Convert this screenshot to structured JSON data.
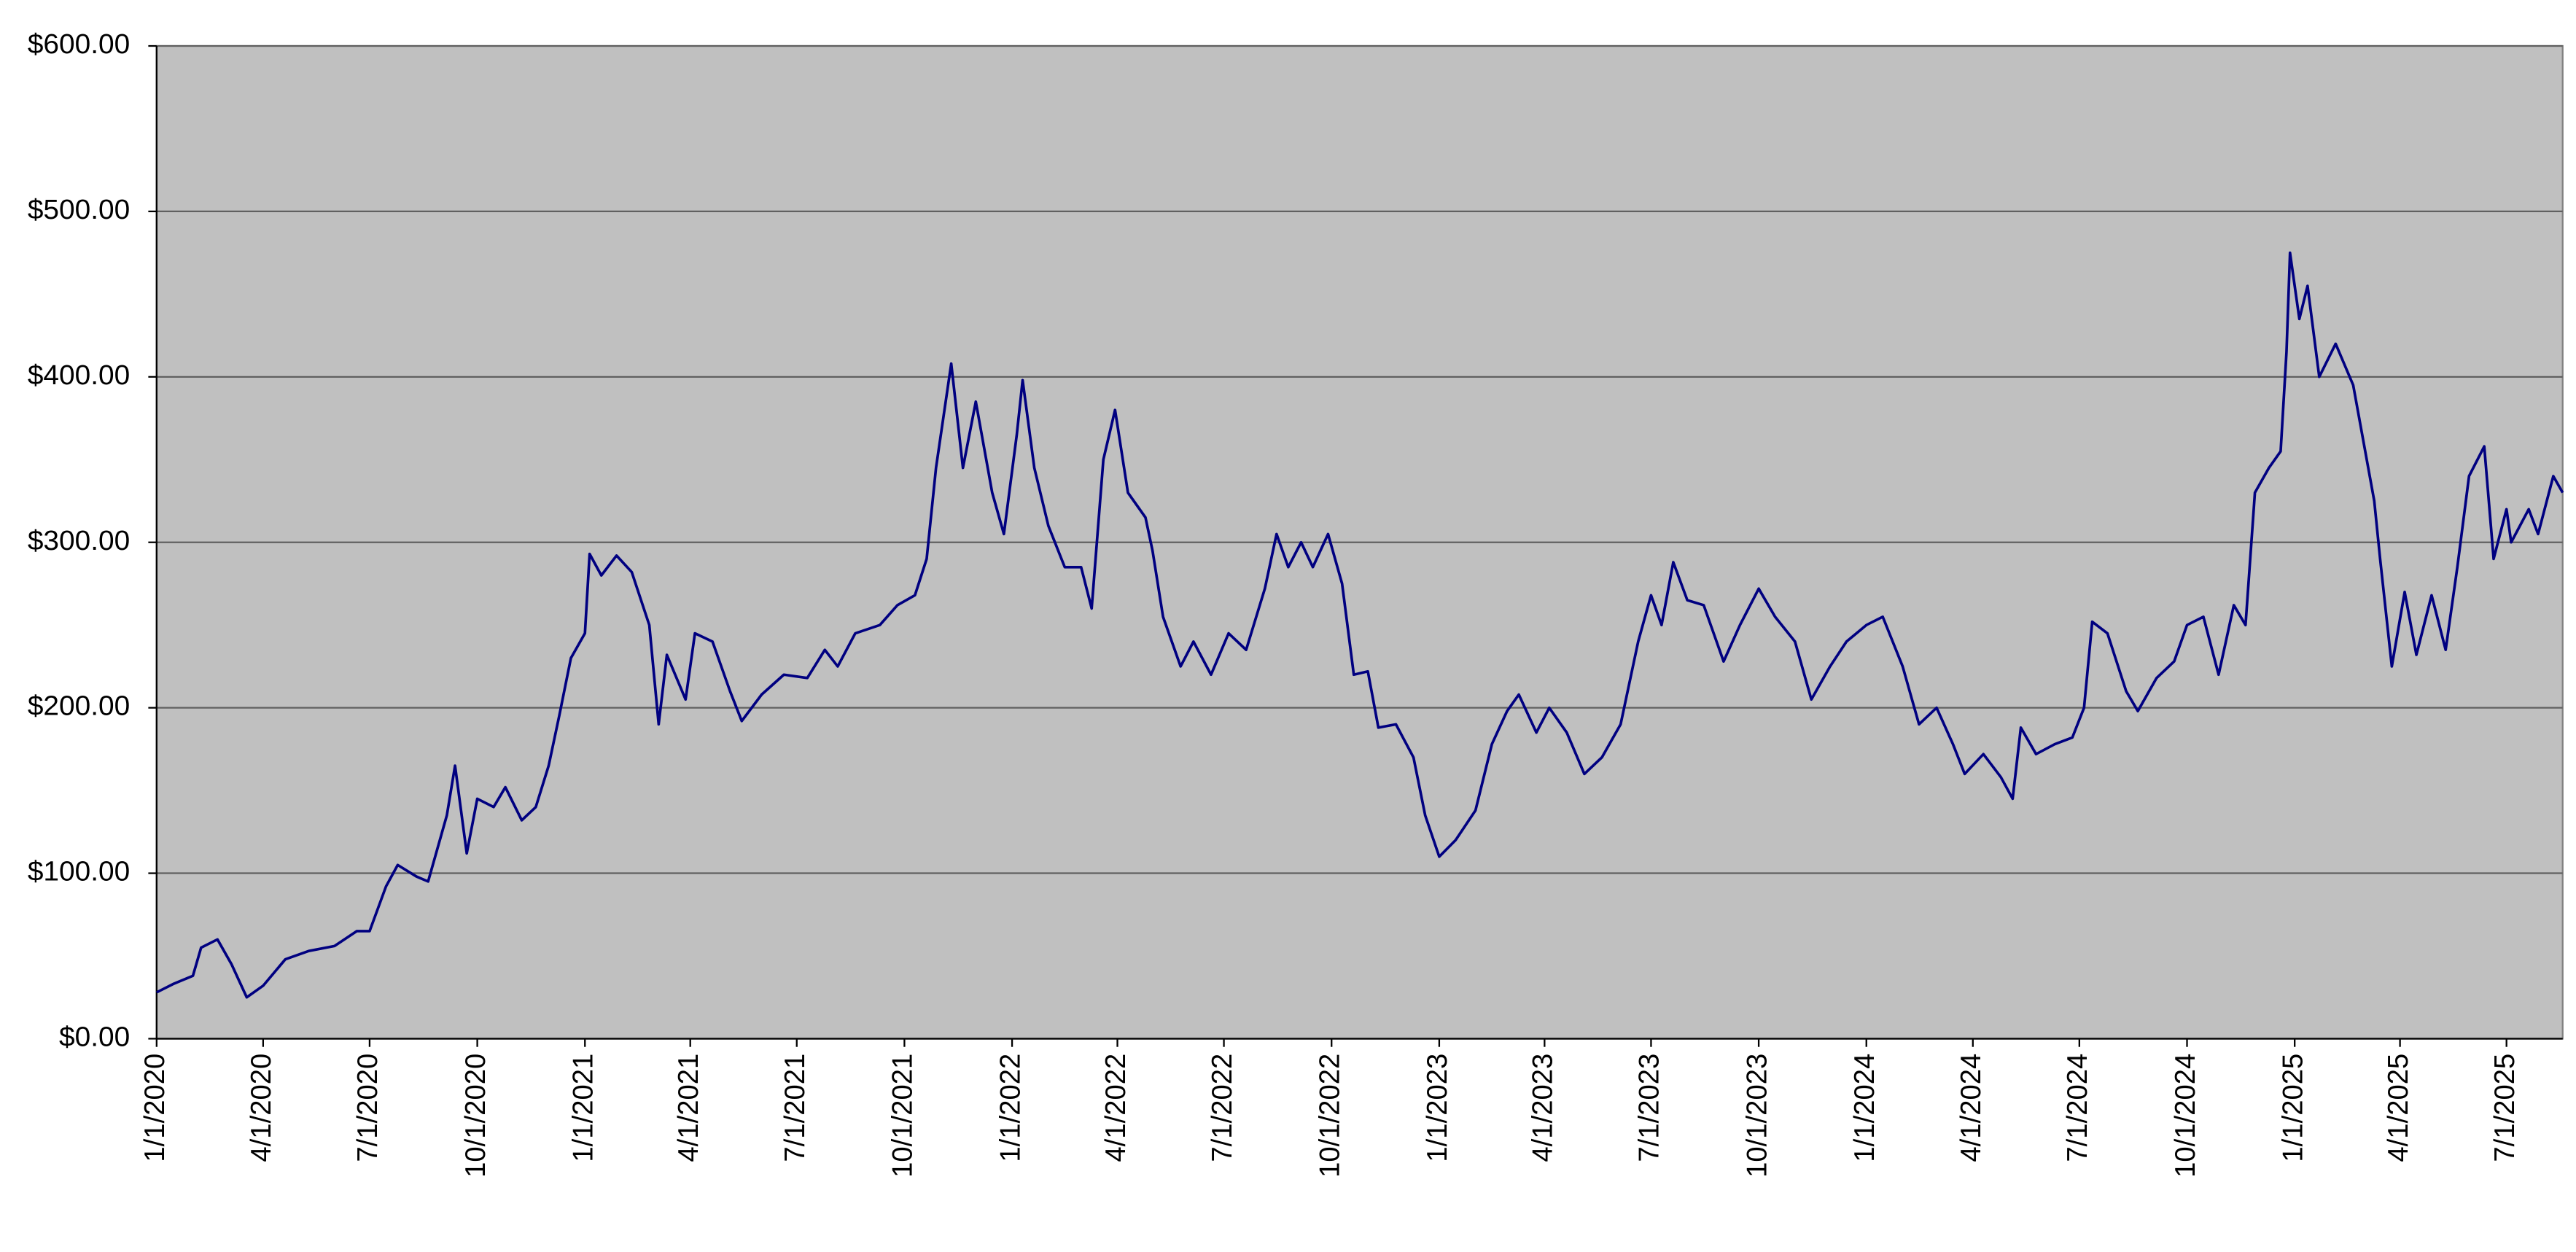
{
  "chart_data": {
    "type": "line",
    "color": "#000080",
    "background": "#c0c0c0",
    "grid": true,
    "x": [
      "2020-01-01",
      "2020-01-15",
      "2020-02-01",
      "2020-02-08",
      "2020-02-22",
      "2020-03-05",
      "2020-03-18",
      "2020-04-01",
      "2020-04-20",
      "2020-05-10",
      "2020-06-01",
      "2020-06-20",
      "2020-07-01",
      "2020-07-15",
      "2020-07-25",
      "2020-08-10",
      "2020-08-20",
      "2020-09-05",
      "2020-09-12",
      "2020-09-22",
      "2020-10-01",
      "2020-10-15",
      "2020-10-25",
      "2020-11-08",
      "2020-11-20",
      "2020-12-01",
      "2020-12-10",
      "2020-12-20",
      "2021-01-01",
      "2021-01-05",
      "2021-01-15",
      "2021-01-28",
      "2021-02-10",
      "2021-02-25",
      "2021-03-05",
      "2021-03-12",
      "2021-03-28",
      "2021-04-05",
      "2021-04-20",
      "2021-05-05",
      "2021-05-15",
      "2021-06-01",
      "2021-06-20",
      "2021-07-10",
      "2021-07-25",
      "2021-08-05",
      "2021-08-20",
      "2021-09-10",
      "2021-09-25",
      "2021-10-10",
      "2021-10-20",
      "2021-10-28",
      "2021-11-10",
      "2021-11-20",
      "2021-12-01",
      "2021-12-15",
      "2021-12-25",
      "2022-01-05",
      "2022-01-10",
      "2022-01-20",
      "2022-02-01",
      "2022-02-15",
      "2022-03-01",
      "2022-03-10",
      "2022-03-20",
      "2022-03-30",
      "2022-04-10",
      "2022-04-25",
      "2022-05-01",
      "2022-05-10",
      "2022-05-25",
      "2022-06-05",
      "2022-06-20",
      "2022-07-05",
      "2022-07-20",
      "2022-08-05",
      "2022-08-15",
      "2022-08-25",
      "2022-09-05",
      "2022-09-15",
      "2022-09-28",
      "2022-10-10",
      "2022-10-20",
      "2022-11-01",
      "2022-11-10",
      "2022-11-25",
      "2022-12-10",
      "2022-12-20",
      "2023-01-01",
      "2023-01-15",
      "2023-02-01",
      "2023-02-15",
      "2023-02-28",
      "2023-03-10",
      "2023-03-25",
      "2023-04-05",
      "2023-04-20",
      "2023-05-05",
      "2023-05-20",
      "2023-06-05",
      "2023-06-20",
      "2023-07-01",
      "2023-07-10",
      "2023-07-20",
      "2023-08-01",
      "2023-08-15",
      "2023-09-01",
      "2023-09-15",
      "2023-10-01",
      "2023-10-15",
      "2023-11-01",
      "2023-11-15",
      "2023-12-01",
      "2023-12-15",
      "2024-01-01",
      "2024-01-15",
      "2024-02-01",
      "2024-02-15",
      "2024-03-01",
      "2024-03-15",
      "2024-03-25",
      "2024-04-10",
      "2024-04-25",
      "2024-05-05",
      "2024-05-12",
      "2024-05-25",
      "2024-06-10",
      "2024-06-25",
      "2024-07-05",
      "2024-07-12",
      "2024-07-25",
      "2024-08-10",
      "2024-08-20",
      "2024-09-05",
      "2024-09-20",
      "2024-10-01",
      "2024-10-15",
      "2024-10-28",
      "2024-11-10",
      "2024-11-20",
      "2024-11-28",
      "2024-12-10",
      "2024-12-20",
      "2024-12-25",
      "2024-12-28",
      "2025-01-05",
      "2025-01-12",
      "2025-01-22",
      "2025-02-05",
      "2025-02-20",
      "2025-03-01",
      "2025-03-10",
      "2025-03-15",
      "2025-03-25",
      "2025-04-05",
      "2025-04-15",
      "2025-04-28",
      "2025-05-10",
      "2025-05-20",
      "2025-05-30",
      "2025-06-12",
      "2025-06-20",
      "2025-07-01",
      "2025-07-05",
      "2025-07-20",
      "2025-07-28",
      "2025-08-10",
      "2025-08-18"
    ],
    "values": [
      28,
      33,
      38,
      55,
      60,
      45,
      25,
      32,
      48,
      53,
      56,
      65,
      65,
      92,
      105,
      98,
      95,
      135,
      165,
      112,
      145,
      140,
      152,
      132,
      140,
      165,
      195,
      230,
      245,
      293,
      280,
      292,
      282,
      250,
      190,
      232,
      205,
      245,
      240,
      210,
      192,
      208,
      220,
      218,
      235,
      225,
      245,
      250,
      262,
      268,
      290,
      345,
      408,
      345,
      385,
      330,
      305,
      365,
      398,
      345,
      310,
      285,
      285,
      260,
      350,
      380,
      330,
      315,
      295,
      255,
      225,
      240,
      220,
      245,
      235,
      272,
      305,
      285,
      300,
      285,
      305,
      275,
      220,
      222,
      188,
      190,
      170,
      135,
      110,
      120,
      138,
      178,
      198,
      208,
      185,
      200,
      185,
      160,
      170,
      190,
      240,
      268,
      250,
      288,
      265,
      262,
      228,
      250,
      272,
      255,
      240,
      205,
      225,
      240,
      250,
      255,
      225,
      190,
      200,
      178,
      160,
      172,
      158,
      145,
      188,
      172,
      178,
      182,
      200,
      252,
      245,
      210,
      198,
      218,
      228,
      250,
      255,
      220,
      262,
      250,
      330,
      345,
      355,
      415,
      475,
      435,
      455,
      400,
      420,
      395,
      360,
      325,
      290,
      225,
      270,
      232,
      268,
      235,
      285,
      340,
      358,
      290,
      320,
      300,
      320,
      305,
      340,
      330
    ],
    "xlim": [
      "2020-01-01",
      "2025-08-18"
    ],
    "xticks": [
      {
        "value": "2020-01-01",
        "label": "1/1/2020"
      },
      {
        "value": "2020-04-01",
        "label": "4/1/2020"
      },
      {
        "value": "2020-07-01",
        "label": "7/1/2020"
      },
      {
        "value": "2020-10-01",
        "label": "10/1/2020"
      },
      {
        "value": "2021-01-01",
        "label": "1/1/2021"
      },
      {
        "value": "2021-04-01",
        "label": "4/1/2021"
      },
      {
        "value": "2021-07-01",
        "label": "7/1/2021"
      },
      {
        "value": "2021-10-01",
        "label": "10/1/2021"
      },
      {
        "value": "2022-01-01",
        "label": "1/1/2022"
      },
      {
        "value": "2022-04-01",
        "label": "4/1/2022"
      },
      {
        "value": "2022-07-01",
        "label": "7/1/2022"
      },
      {
        "value": "2022-10-01",
        "label": "10/1/2022"
      },
      {
        "value": "2023-01-01",
        "label": "1/1/2023"
      },
      {
        "value": "2023-04-01",
        "label": "4/1/2023"
      },
      {
        "value": "2023-07-01",
        "label": "7/1/2023"
      },
      {
        "value": "2023-10-01",
        "label": "10/1/2023"
      },
      {
        "value": "2024-01-01",
        "label": "1/1/2024"
      },
      {
        "value": "2024-04-01",
        "label": "4/1/2024"
      },
      {
        "value": "2024-07-01",
        "label": "7/1/2024"
      },
      {
        "value": "2024-10-01",
        "label": "10/1/2024"
      },
      {
        "value": "2025-01-01",
        "label": "1/1/2025"
      },
      {
        "value": "2025-04-01",
        "label": "4/1/2025"
      },
      {
        "value": "2025-07-01",
        "label": "7/1/2025"
      }
    ],
    "ylim": [
      0,
      600
    ],
    "yticks": [
      {
        "value": 0,
        "label": "$0.00"
      },
      {
        "value": 100,
        "label": "$100.00"
      },
      {
        "value": 200,
        "label": "$200.00"
      },
      {
        "value": 300,
        "label": "$300.00"
      },
      {
        "value": 400,
        "label": "$400.00"
      },
      {
        "value": 500,
        "label": "$500.00"
      },
      {
        "value": 600,
        "label": "$600.00"
      }
    ]
  }
}
